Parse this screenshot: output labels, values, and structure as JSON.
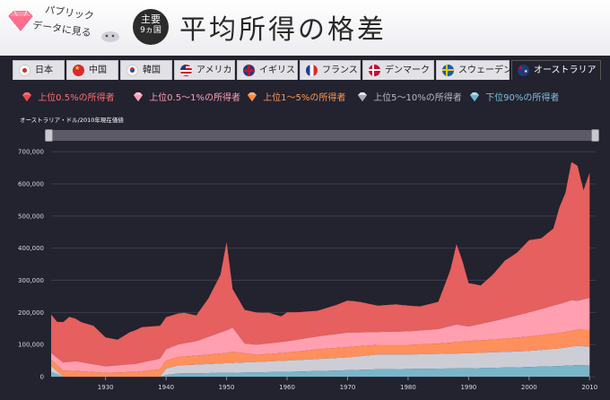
{
  "header": {
    "logo_line1": "パブリック",
    "logo_line2": "データに見る",
    "badge_top": "主要",
    "badge_bottom": "9ヵ国",
    "title": "平均所得の格差"
  },
  "tabs": [
    {
      "label": "日本",
      "flag": "jp-flag-icon",
      "active": false
    },
    {
      "label": "中国",
      "flag": "cn-flag-icon",
      "active": false
    },
    {
      "label": "韓国",
      "flag": "kr-flag-icon",
      "active": false
    },
    {
      "label": "アメリカ",
      "flag": "us-flag-icon",
      "active": false
    },
    {
      "label": "イギリス",
      "flag": "uk-flag-icon",
      "active": false
    },
    {
      "label": "フランス",
      "flag": "fr-flag-icon",
      "active": false
    },
    {
      "label": "デンマーク",
      "flag": "dk-flag-icon",
      "active": false
    },
    {
      "label": "スウェーデン",
      "flag": "se-flag-icon",
      "active": false
    },
    {
      "label": "オーストラリア",
      "flag": "au-flag-icon",
      "active": true
    }
  ],
  "legend": [
    {
      "label": "上位0.5%の所得者",
      "color": "#ff6f6f"
    },
    {
      "label": "上位0.5〜1%の所得者",
      "color": "#ff9fb8"
    },
    {
      "label": "上位1〜5%の所得者",
      "color": "#ff9a55"
    },
    {
      "label": "上位5〜10%の所得者",
      "color": "#b9b9c2"
    },
    {
      "label": "下位90%の所得者",
      "color": "#7cc4d8"
    }
  ],
  "unit_label": "オーストラリア・ドル/2010年現在価値",
  "colors": {
    "top05": "#e5605e",
    "top05_1": "#ff9fb0",
    "top1_5": "#ff8f5c",
    "top5_10": "#cdcdd6",
    "bottom90": "#7ab6c9",
    "background": "#23222f"
  },
  "chart_data": {
    "type": "area",
    "stacked": true,
    "ylabel": "オーストラリア・ドル/2010年現在価値",
    "ylim": [
      0,
      720000
    ],
    "yticks": [
      0,
      100000,
      200000,
      300000,
      400000,
      500000,
      600000,
      700000
    ],
    "ytick_labels": [
      "0",
      "100,000",
      "200,000",
      "300,000",
      "400,000",
      "500,000",
      "600,000",
      "700,000"
    ],
    "xlim": [
      1921,
      2011
    ],
    "xticks": [
      1930,
      1940,
      1950,
      1960,
      1970,
      1980,
      1990,
      2000,
      2010
    ],
    "grid": true,
    "series": [
      {
        "name": "下位90%の所得者",
        "points": [
          [
            1921,
            15000
          ],
          [
            1923,
            0
          ],
          [
            1939,
            0
          ],
          [
            1940,
            5000
          ],
          [
            1942,
            10000
          ],
          [
            1950,
            12000
          ],
          [
            1960,
            15000
          ],
          [
            1970,
            20000
          ],
          [
            1975,
            23000
          ],
          [
            1980,
            24000
          ],
          [
            1990,
            26000
          ],
          [
            2000,
            30000
          ],
          [
            2005,
            33000
          ],
          [
            2008,
            36000
          ],
          [
            2010,
            35000
          ]
        ]
      },
      {
        "name": "上位5〜10%の所得者",
        "points": [
          [
            1921,
            18000
          ],
          [
            1923,
            0
          ],
          [
            1939,
            0
          ],
          [
            1940,
            20000
          ],
          [
            1942,
            25000
          ],
          [
            1950,
            30000
          ],
          [
            1960,
            35000
          ],
          [
            1970,
            40000
          ],
          [
            1975,
            46000
          ],
          [
            1980,
            45000
          ],
          [
            1990,
            47000
          ],
          [
            2000,
            50000
          ],
          [
            2005,
            55000
          ],
          [
            2008,
            60000
          ],
          [
            2010,
            58000
          ]
        ]
      },
      {
        "name": "上位1〜5%の所得者",
        "points": [
          [
            1921,
            20000
          ],
          [
            1925,
            18000
          ],
          [
            1930,
            12000
          ],
          [
            1935,
            15000
          ],
          [
            1940,
            25000
          ],
          [
            1945,
            28000
          ],
          [
            1950,
            32000
          ],
          [
            1951,
            35000
          ],
          [
            1955,
            22000
          ],
          [
            1960,
            25000
          ],
          [
            1965,
            30000
          ],
          [
            1970,
            32000
          ],
          [
            1975,
            30000
          ],
          [
            1980,
            30000
          ],
          [
            1985,
            32000
          ],
          [
            1988,
            35000
          ],
          [
            1990,
            38000
          ],
          [
            1995,
            40000
          ],
          [
            2000,
            45000
          ],
          [
            2005,
            48000
          ],
          [
            2008,
            50000
          ],
          [
            2010,
            52000
          ]
        ]
      },
      {
        "name": "上位0.5〜1%の所得者",
        "points": [
          [
            1921,
            20000
          ],
          [
            1925,
            30000
          ],
          [
            1930,
            20000
          ],
          [
            1935,
            25000
          ],
          [
            1940,
            35000
          ],
          [
            1945,
            45000
          ],
          [
            1948,
            60000
          ],
          [
            1950,
            70000
          ],
          [
            1951,
            75000
          ],
          [
            1953,
            30000
          ],
          [
            1960,
            35000
          ],
          [
            1965,
            40000
          ],
          [
            1970,
            45000
          ],
          [
            1975,
            40000
          ],
          [
            1980,
            42000
          ],
          [
            1985,
            45000
          ],
          [
            1988,
            55000
          ],
          [
            1990,
            45000
          ],
          [
            1995,
            60000
          ],
          [
            2000,
            75000
          ],
          [
            2005,
            90000
          ],
          [
            2007,
            95000
          ],
          [
            2008,
            90000
          ],
          [
            2010,
            100000
          ]
        ]
      },
      {
        "name": "上位0.5%の所得者",
        "points": [
          [
            1921,
            120000
          ],
          [
            1922,
            112000
          ],
          [
            1924,
            140000
          ],
          [
            1926,
            125000
          ],
          [
            1928,
            120000
          ],
          [
            1930,
            90000
          ],
          [
            1932,
            80000
          ],
          [
            1934,
            100000
          ],
          [
            1936,
            110000
          ],
          [
            1938,
            105000
          ],
          [
            1940,
            100000
          ],
          [
            1943,
            95000
          ],
          [
            1945,
            80000
          ],
          [
            1947,
            120000
          ],
          [
            1949,
            180000
          ],
          [
            1950,
            275000
          ],
          [
            1951,
            120000
          ],
          [
            1953,
            105000
          ],
          [
            1955,
            100000
          ],
          [
            1957,
            95000
          ],
          [
            1959,
            80000
          ],
          [
            1960,
            90000
          ],
          [
            1962,
            85000
          ],
          [
            1965,
            80000
          ],
          [
            1968,
            90000
          ],
          [
            1970,
            100000
          ],
          [
            1972,
            95000
          ],
          [
            1975,
            82000
          ],
          [
            1978,
            85000
          ],
          [
            1980,
            80000
          ],
          [
            1982,
            75000
          ],
          [
            1985,
            85000
          ],
          [
            1987,
            175000
          ],
          [
            1988,
            250000
          ],
          [
            1989,
            200000
          ],
          [
            1990,
            135000
          ],
          [
            1992,
            120000
          ],
          [
            1994,
            145000
          ],
          [
            1996,
            180000
          ],
          [
            1998,
            195000
          ],
          [
            2000,
            225000
          ],
          [
            2002,
            220000
          ],
          [
            2004,
            240000
          ],
          [
            2005,
            300000
          ],
          [
            2006,
            340000
          ],
          [
            2007,
            430000
          ],
          [
            2008,
            420000
          ],
          [
            2009,
            340000
          ],
          [
            2010,
            390000
          ]
        ]
      }
    ]
  }
}
